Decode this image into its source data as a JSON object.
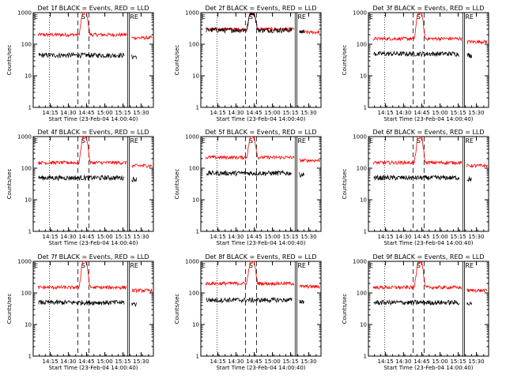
{
  "colors": {
    "events": "#000000",
    "lld": "#ff0000"
  },
  "shared": {
    "ylabel": "Counts/sec",
    "xlabel": "Start Time (23-Feb-04 14:00:40)",
    "x_tick_labels": [
      "14:15",
      "14:30",
      "14:45",
      "15:00",
      "15:15",
      "15:30"
    ],
    "y_tick_labels": [
      "1",
      "10",
      "100",
      "1000"
    ],
    "marker_e": "E",
    "marker_s": "S",
    "marker_re": "RE"
  },
  "chart_data": [
    {
      "type": "line",
      "title": "Det 1f BLACK = Events, RED = LLD",
      "scale": "log",
      "ylim": [
        1,
        1000
      ],
      "xlim": [
        "14:00:40",
        "15:40"
      ],
      "levels": {
        "lld_base": 200,
        "lld_peak": 1000,
        "events_base": 45,
        "events_peak": null
      },
      "series": [
        {
          "name": "Events"
        },
        {
          "name": "LLD"
        }
      ]
    },
    {
      "type": "line",
      "title": "Det 2f BLACK = Events, RED = LLD",
      "scale": "log",
      "ylim": [
        1,
        1000
      ],
      "xlim": [
        "14:00:40",
        "15:40"
      ],
      "levels": {
        "lld_base": 300,
        "lld_peak": 1000,
        "events_base": 280,
        "events_peak": 1000
      },
      "series": [
        {
          "name": "Events"
        },
        {
          "name": "LLD"
        }
      ]
    },
    {
      "type": "line",
      "title": "Det 3f BLACK = Events, RED = LLD",
      "scale": "log",
      "ylim": [
        1,
        1000
      ],
      "xlim": [
        "14:00:40",
        "15:40"
      ],
      "levels": {
        "lld_base": 150,
        "lld_peak": 1000,
        "events_base": 50,
        "events_peak": null
      },
      "series": [
        {
          "name": "Events"
        },
        {
          "name": "LLD"
        }
      ]
    },
    {
      "type": "line",
      "title": "Det 4f BLACK = Events, RED = LLD",
      "scale": "log",
      "ylim": [
        1,
        1000
      ],
      "xlim": [
        "14:00:40",
        "15:40"
      ],
      "levels": {
        "lld_base": 150,
        "lld_peak": 1000,
        "events_base": 50,
        "events_peak": null
      },
      "series": [
        {
          "name": "Events"
        },
        {
          "name": "LLD"
        }
      ]
    },
    {
      "type": "line",
      "title": "Det 5f BLACK = Events, RED = LLD",
      "scale": "log",
      "ylim": [
        1,
        1000
      ],
      "xlim": [
        "14:00:40",
        "15:40"
      ],
      "levels": {
        "lld_base": 220,
        "lld_peak": 1000,
        "events_base": 70,
        "events_peak": null
      },
      "series": [
        {
          "name": "Events"
        },
        {
          "name": "LLD"
        }
      ]
    },
    {
      "type": "line",
      "title": "Det 6f BLACK = Events, RED = LLD",
      "scale": "log",
      "ylim": [
        1,
        1000
      ],
      "xlim": [
        "14:00:40",
        "15:40"
      ],
      "levels": {
        "lld_base": 150,
        "lld_peak": 1000,
        "events_base": 50,
        "events_peak": null
      },
      "series": [
        {
          "name": "Events"
        },
        {
          "name": "LLD"
        }
      ]
    },
    {
      "type": "line",
      "title": "Det 7f BLACK = Events, RED = LLD",
      "scale": "log",
      "ylim": [
        1,
        1000
      ],
      "xlim": [
        "14:00:40",
        "15:40"
      ],
      "levels": {
        "lld_base": 150,
        "lld_peak": 1000,
        "events_base": 50,
        "events_peak": null
      },
      "series": [
        {
          "name": "Events"
        },
        {
          "name": "LLD"
        }
      ]
    },
    {
      "type": "line",
      "title": "Det 8f BLACK = Events, RED = LLD",
      "scale": "log",
      "ylim": [
        1,
        1000
      ],
      "xlim": [
        "14:00:40",
        "15:40"
      ],
      "levels": {
        "lld_base": 200,
        "lld_peak": 1000,
        "events_base": 60,
        "events_peak": null
      },
      "series": [
        {
          "name": "Events"
        },
        {
          "name": "LLD"
        }
      ]
    },
    {
      "type": "line",
      "title": "Det 9f BLACK = Events, RED = LLD",
      "scale": "log",
      "ylim": [
        1,
        1000
      ],
      "xlim": [
        "14:00:40",
        "15:40"
      ],
      "levels": {
        "lld_base": 150,
        "lld_peak": 1000,
        "events_base": 50,
        "events_peak": null
      },
      "series": [
        {
          "name": "Events"
        },
        {
          "name": "LLD"
        }
      ]
    }
  ]
}
